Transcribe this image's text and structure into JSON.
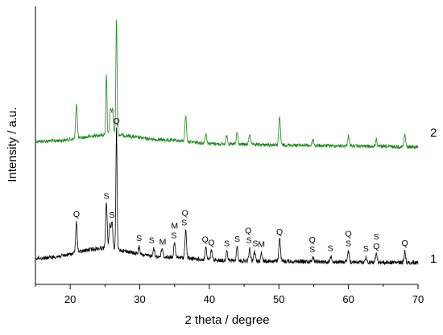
{
  "chart_data": {
    "type": "line",
    "xlabel": "2 theta / degree",
    "ylabel": "Intensity / a.u.",
    "xlim": [
      15,
      70
    ],
    "x_ticks": [
      "20",
      "30",
      "40",
      "50",
      "60",
      "70"
    ],
    "y_ticks": "none",
    "grid": false,
    "legend": "none",
    "series": [
      {
        "name": "2",
        "color": "#1b8a1b",
        "peaks": [
          {
            "x": 20.9,
            "h": 0.3
          },
          {
            "x": 25.2,
            "h": 0.52
          },
          {
            "x": 25.8,
            "h": 0.22
          },
          {
            "x": 26.1,
            "h": 0.22
          },
          {
            "x": 26.65,
            "h": 1.0
          },
          {
            "x": 36.6,
            "h": 0.22
          },
          {
            "x": 39.5,
            "h": 0.08
          },
          {
            "x": 42.5,
            "h": 0.08
          },
          {
            "x": 44.0,
            "h": 0.1
          },
          {
            "x": 45.8,
            "h": 0.09
          },
          {
            "x": 50.1,
            "h": 0.24
          },
          {
            "x": 54.9,
            "h": 0.05
          },
          {
            "x": 60.0,
            "h": 0.09
          },
          {
            "x": 64.0,
            "h": 0.06
          },
          {
            "x": 68.1,
            "h": 0.1
          }
        ]
      },
      {
        "name": "1",
        "color": "#000000",
        "peaks": [
          {
            "x": 20.9,
            "h": 0.25
          },
          {
            "x": 25.2,
            "h": 0.37
          },
          {
            "x": 25.7,
            "h": 0.2
          },
          {
            "x": 26.0,
            "h": 0.22
          },
          {
            "x": 26.65,
            "h": 1.0
          },
          {
            "x": 29.9,
            "h": 0.06
          },
          {
            "x": 32.0,
            "h": 0.07
          },
          {
            "x": 33.2,
            "h": 0.07
          },
          {
            "x": 35.0,
            "h": 0.12
          },
          {
            "x": 36.6,
            "h": 0.23
          },
          {
            "x": 39.5,
            "h": 0.1
          },
          {
            "x": 40.3,
            "h": 0.08
          },
          {
            "x": 42.5,
            "h": 0.08
          },
          {
            "x": 44.0,
            "h": 0.12
          },
          {
            "x": 45.8,
            "h": 0.1
          },
          {
            "x": 46.5,
            "h": 0.08
          },
          {
            "x": 47.5,
            "h": 0.07
          },
          {
            "x": 50.1,
            "h": 0.2
          },
          {
            "x": 54.9,
            "h": 0.04
          },
          {
            "x": 57.5,
            "h": 0.05
          },
          {
            "x": 60.0,
            "h": 0.09
          },
          {
            "x": 62.5,
            "h": 0.04
          },
          {
            "x": 64.0,
            "h": 0.07
          },
          {
            "x": 68.1,
            "h": 0.09
          }
        ]
      }
    ],
    "annotations": [
      {
        "series": "1",
        "x": 20.9,
        "text": "Q"
      },
      {
        "series": "1",
        "x": 25.2,
        "text": "S"
      },
      {
        "series": "1",
        "x": 26.0,
        "text": "S"
      },
      {
        "series": "1",
        "x": 26.65,
        "text": "Q"
      },
      {
        "series": "1",
        "x": 29.9,
        "text": "S"
      },
      {
        "series": "1",
        "x": 31.7,
        "text": "S"
      },
      {
        "series": "1",
        "x": 33.3,
        "text": "M"
      },
      {
        "series": "1",
        "x": 34.9,
        "text": "S"
      },
      {
        "series": "1",
        "x": 35.0,
        "text": "M"
      },
      {
        "series": "1",
        "x": 36.4,
        "text": "S"
      },
      {
        "series": "1",
        "x": 36.5,
        "text": "Q"
      },
      {
        "series": "1",
        "x": 39.4,
        "text": "Q"
      },
      {
        "series": "1",
        "x": 40.3,
        "text": "Q"
      },
      {
        "series": "1",
        "x": 42.5,
        "text": "S"
      },
      {
        "series": "1",
        "x": 44.0,
        "text": "S"
      },
      {
        "series": "1",
        "x": 45.7,
        "text": "S"
      },
      {
        "series": "1",
        "x": 45.6,
        "text": "Q"
      },
      {
        "series": "1",
        "x": 46.6,
        "text": "S"
      },
      {
        "series": "1",
        "x": 47.5,
        "text": "M"
      },
      {
        "series": "1",
        "x": 50.1,
        "text": "Q"
      },
      {
        "series": "1",
        "x": 54.8,
        "text": "S"
      },
      {
        "series": "1",
        "x": 54.8,
        "text": "Q"
      },
      {
        "series": "1",
        "x": 57.4,
        "text": "S"
      },
      {
        "series": "1",
        "x": 60.0,
        "text": "S"
      },
      {
        "series": "1",
        "x": 60.0,
        "text": "Q"
      },
      {
        "series": "1",
        "x": 62.5,
        "text": "S"
      },
      {
        "series": "1",
        "x": 64.0,
        "text": "Q"
      },
      {
        "series": "1",
        "x": 64.0,
        "text": "S"
      },
      {
        "series": "1",
        "x": 68.1,
        "text": "Q"
      }
    ]
  }
}
